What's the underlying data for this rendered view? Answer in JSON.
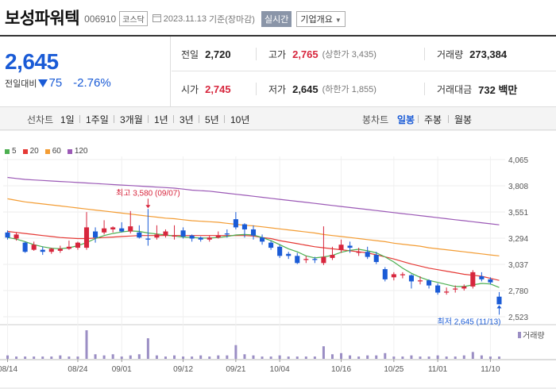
{
  "header": {
    "stock_name": "보성파워텍",
    "stock_code": "006910",
    "market": "코스닥",
    "date": "2023.11.13",
    "basis": "기준(장마감)",
    "realtime_label": "실시간",
    "company_info_label": "기업개요"
  },
  "price": {
    "current": "2,645",
    "change_label": "전일대비",
    "change": "75",
    "change_pct": "-2.76%"
  },
  "stats": {
    "prev_close_label": "전일",
    "prev_close": "2,720",
    "high_label": "고가",
    "high": "2,765",
    "upper_limit": "(상한가 3,435)",
    "volume_label": "거래량",
    "volume": "273,384",
    "open_label": "시가",
    "open": "2,745",
    "low_label": "저가",
    "low": "2,645",
    "lower_limit": "(하한가 1,855)",
    "amount_label": "거래대금",
    "amount": "732 백만"
  },
  "toolbar": {
    "line_label": "선차트",
    "line_periods": [
      "1일",
      "1주일",
      "3개월",
      "1년",
      "3년",
      "5년",
      "10년"
    ],
    "candle_label": "봉차트",
    "candle_periods": [
      "일봉",
      "주봉",
      "월봉"
    ],
    "active_candle": "일봉"
  },
  "colors": {
    "up": "#d7263d",
    "down": "#1a5bd6",
    "ma5": "#4caf50",
    "ma20": "#e53935",
    "ma60": "#f39c33",
    "ma120": "#9b59b6"
  },
  "chart_data": {
    "type": "candlestick",
    "legend": [
      "5",
      "20",
      "60",
      "120"
    ],
    "y_ticks": [
      4065,
      3808,
      3551,
      3294,
      3037,
      2780,
      2523
    ],
    "ylim": [
      2523,
      4065
    ],
    "x_labels": [
      "08/14",
      "08/24",
      "09/01",
      "09/12",
      "09/21",
      "10/04",
      "10/16",
      "10/25",
      "11/01",
      "11/10"
    ],
    "x_label_index": [
      0,
      8,
      13,
      20,
      26,
      31,
      38,
      44,
      49,
      55
    ],
    "volume_label": "거래량",
    "annotation_high": "최고 3,580 (09/07)",
    "annotation_low": "최저 2,645 (11/13)",
    "high_index": 16,
    "high_value": 3580,
    "low_index": 56,
    "low_value": 2645,
    "candles": [
      [
        3350,
        3300,
        3370,
        3280
      ],
      [
        3290,
        3330,
        3350,
        3270
      ],
      [
        3250,
        3160,
        3260,
        3150
      ],
      [
        3180,
        3230,
        3260,
        3170
      ],
      [
        3180,
        3160,
        3210,
        3130
      ],
      [
        3160,
        3190,
        3200,
        3140
      ],
      [
        3170,
        3190,
        3220,
        3150
      ],
      [
        3190,
        3210,
        3270,
        3180
      ],
      [
        3200,
        3250,
        3260,
        3180
      ],
      [
        3200,
        3400,
        3550,
        3180
      ],
      [
        3360,
        3300,
        3400,
        3250
      ],
      [
        3350,
        3390,
        3470,
        3330
      ],
      [
        3380,
        3400,
        3410,
        3350
      ],
      [
        3390,
        3360,
        3450,
        3350
      ],
      [
        3360,
        3410,
        3560,
        3340
      ],
      [
        3350,
        3300,
        3420,
        3290
      ],
      [
        3290,
        3280,
        3580,
        3220
      ],
      [
        3300,
        3330,
        3420,
        3280
      ],
      [
        3320,
        3360,
        3380,
        3300
      ],
      [
        3310,
        3320,
        3420,
        3280
      ],
      [
        3370,
        3310,
        3400,
        3290
      ],
      [
        3320,
        3290,
        3330,
        3260
      ],
      [
        3300,
        3280,
        3310,
        3260
      ],
      [
        3280,
        3300,
        3320,
        3260
      ],
      [
        3300,
        3320,
        3360,
        3290
      ],
      [
        3340,
        3330,
        3380,
        3300
      ],
      [
        3480,
        3400,
        3550,
        3380
      ],
      [
        3430,
        3380,
        3440,
        3300
      ],
      [
        3380,
        3320,
        3420,
        3280
      ],
      [
        3300,
        3260,
        3330,
        3230
      ],
      [
        3250,
        3200,
        3270,
        3180
      ],
      [
        3210,
        3120,
        3230,
        3100
      ],
      [
        3140,
        3120,
        3160,
        3090
      ],
      [
        3120,
        3050,
        3150,
        3040
      ],
      [
        3080,
        3090,
        3120,
        3050
      ],
      [
        3090,
        3080,
        3110,
        3050
      ],
      [
        3050,
        3110,
        3410,
        3030
      ],
      [
        3100,
        3130,
        3210,
        3080
      ],
      [
        3180,
        3230,
        3280,
        3150
      ],
      [
        3220,
        3200,
        3260,
        3150
      ],
      [
        3150,
        3160,
        3200,
        3120
      ],
      [
        3160,
        3110,
        3210,
        3090
      ],
      [
        3130,
        3060,
        3160,
        3040
      ],
      [
        2990,
        2890,
        3010,
        2870
      ],
      [
        2910,
        2940,
        2960,
        2880
      ],
      [
        2930,
        2940,
        2960,
        2900
      ],
      [
        2930,
        2870,
        2940,
        2800
      ],
      [
        2870,
        2880,
        2920,
        2840
      ],
      [
        2880,
        2830,
        2890,
        2800
      ],
      [
        2830,
        2760,
        2850,
        2740
      ],
      [
        2760,
        2770,
        2810,
        2740
      ],
      [
        2790,
        2800,
        2830,
        2760
      ],
      [
        2800,
        2820,
        2840,
        2780
      ],
      [
        2820,
        2960,
        2980,
        2800
      ],
      [
        2920,
        2890,
        2960,
        2870
      ],
      [
        2890,
        2860,
        2910,
        2840
      ],
      [
        2720,
        2645,
        2765,
        2645
      ]
    ],
    "volume": [
      3,
      2,
      2,
      2,
      2,
      2,
      3,
      2,
      2,
      25,
      4,
      3,
      4,
      2,
      3,
      4,
      18,
      3,
      2,
      3,
      2,
      2,
      3,
      2,
      3,
      3,
      12,
      4,
      3,
      2,
      2,
      3,
      2,
      2,
      2,
      2,
      11,
      4,
      5,
      3,
      2,
      3,
      3,
      5,
      2,
      2,
      3,
      2,
      2,
      3,
      2,
      2,
      3,
      6,
      3,
      2,
      2
    ],
    "ma5": [
      3300,
      3285,
      3260,
      3230,
      3210,
      3195,
      3190,
      3200,
      3220,
      3250,
      3290,
      3320,
      3340,
      3355,
      3365,
      3360,
      3345,
      3335,
      3325,
      3315,
      3305,
      3300,
      3295,
      3295,
      3300,
      3310,
      3325,
      3330,
      3325,
      3300,
      3270,
      3230,
      3190,
      3160,
      3120,
      3100,
      3110,
      3125,
      3155,
      3175,
      3185,
      3170,
      3150,
      3110,
      3060,
      3000,
      2950,
      2910,
      2880,
      2860,
      2840,
      2820,
      2820,
      2835,
      2850,
      2845,
      2810
    ],
    "ma20": [
      3360,
      3350,
      3340,
      3330,
      3320,
      3310,
      3300,
      3295,
      3290,
      3290,
      3295,
      3300,
      3305,
      3310,
      3315,
      3320,
      3320,
      3320,
      3320,
      3320,
      3320,
      3320,
      3320,
      3320,
      3320,
      3320,
      3320,
      3320,
      3315,
      3300,
      3290,
      3270,
      3255,
      3240,
      3225,
      3210,
      3200,
      3190,
      3180,
      3170,
      3160,
      3150,
      3130,
      3110,
      3090,
      3065,
      3040,
      3020,
      3000,
      2985,
      2970,
      2955,
      2940,
      2930,
      2920,
      2900,
      2880
    ],
    "ma60": [
      3680,
      3665,
      3650,
      3640,
      3630,
      3620,
      3610,
      3600,
      3590,
      3580,
      3570,
      3560,
      3550,
      3540,
      3530,
      3520,
      3510,
      3500,
      3490,
      3485,
      3475,
      3465,
      3460,
      3455,
      3450,
      3440,
      3430,
      3420,
      3415,
      3405,
      3395,
      3385,
      3375,
      3365,
      3355,
      3345,
      3330,
      3320,
      3310,
      3300,
      3290,
      3280,
      3270,
      3260,
      3245,
      3235,
      3225,
      3215,
      3200,
      3190,
      3180,
      3170,
      3160,
      3150,
      3140,
      3130,
      3120
    ],
    "ma120": [
      3890,
      3880,
      3870,
      3865,
      3860,
      3855,
      3850,
      3845,
      3840,
      3835,
      3830,
      3825,
      3820,
      3815,
      3810,
      3805,
      3800,
      3795,
      3790,
      3785,
      3775,
      3765,
      3760,
      3755,
      3745,
      3735,
      3725,
      3715,
      3705,
      3695,
      3685,
      3675,
      3665,
      3655,
      3645,
      3635,
      3625,
      3615,
      3605,
      3595,
      3585,
      3575,
      3565,
      3555,
      3545,
      3535,
      3525,
      3515,
      3505,
      3495,
      3485,
      3475,
      3465,
      3455,
      3445,
      3435,
      3425
    ]
  }
}
